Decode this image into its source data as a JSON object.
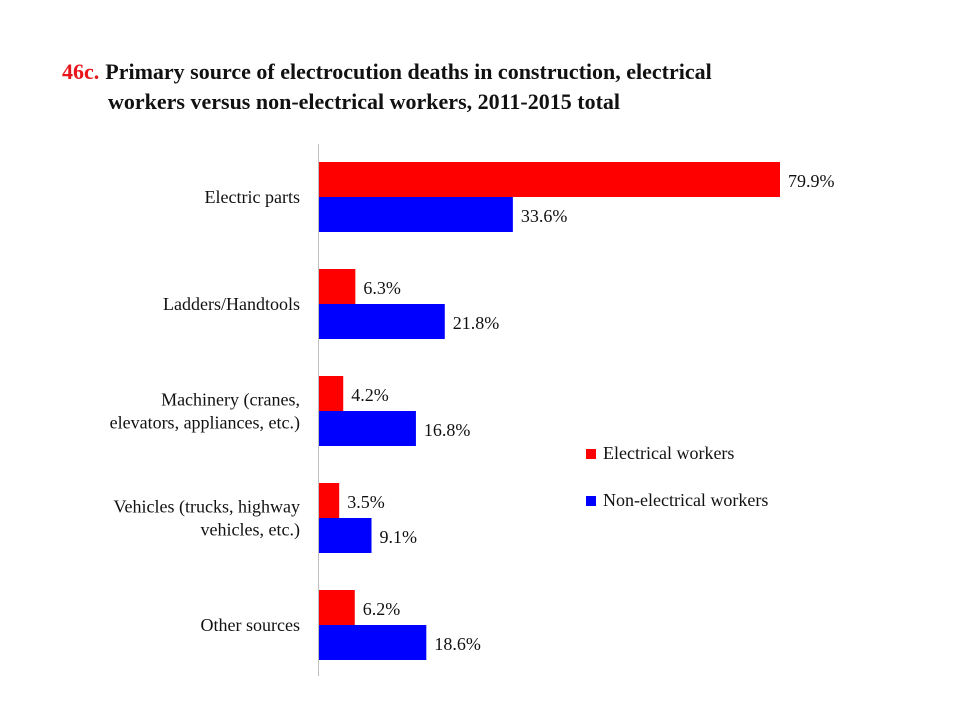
{
  "title": {
    "number": "46c.",
    "line1": "Primary source of electrocution deaths in construction, electrical",
    "line2": "workers versus non-electrical workers, 2011-2015 total"
  },
  "chart_data": {
    "type": "bar",
    "orientation": "horizontal",
    "title": "46c. Primary source of electrocution deaths in construction, electrical workers versus non-electrical workers, 2011-2015 total",
    "categories": [
      [
        "Electric parts"
      ],
      [
        "Ladders/Handtools"
      ],
      [
        "Machinery (cranes,",
        "elevators, appliances, etc.)"
      ],
      [
        "Vehicles (trucks, highway",
        "vehicles, etc.)"
      ],
      [
        "Other sources"
      ]
    ],
    "series": [
      {
        "name": "Electrical workers",
        "color": "#ff0000",
        "values": [
          79.9,
          6.3,
          4.2,
          3.5,
          6.2
        ]
      },
      {
        "name": "Non-electrical workers",
        "color": "#0000ff",
        "values": [
          33.6,
          21.8,
          16.8,
          9.1,
          18.6
        ]
      }
    ],
    "value_suffix": "%",
    "xlim": [
      0,
      100
    ],
    "grid": false,
    "legend_position": "right"
  }
}
